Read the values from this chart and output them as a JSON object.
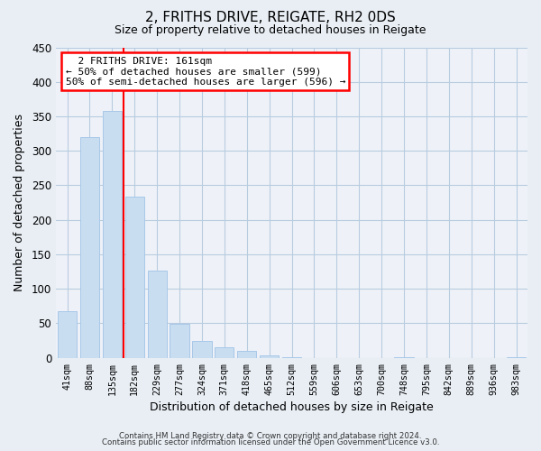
{
  "title": "2, FRITHS DRIVE, REIGATE, RH2 0DS",
  "subtitle": "Size of property relative to detached houses in Reigate",
  "xlabel": "Distribution of detached houses by size in Reigate",
  "ylabel": "Number of detached properties",
  "bar_color": "#c8ddf0",
  "bar_edge_color": "#a8c8e8",
  "categories": [
    "41sqm",
    "88sqm",
    "135sqm",
    "182sqm",
    "229sqm",
    "277sqm",
    "324sqm",
    "371sqm",
    "418sqm",
    "465sqm",
    "512sqm",
    "559sqm",
    "606sqm",
    "653sqm",
    "700sqm",
    "748sqm",
    "795sqm",
    "842sqm",
    "889sqm",
    "936sqm",
    "983sqm"
  ],
  "values": [
    67,
    320,
    358,
    234,
    127,
    49,
    25,
    15,
    10,
    3,
    1,
    0,
    0,
    0,
    0,
    1,
    0,
    0,
    0,
    0,
    1
  ],
  "ylim": [
    0,
    450
  ],
  "yticks": [
    0,
    50,
    100,
    150,
    200,
    250,
    300,
    350,
    400,
    450
  ],
  "red_line_x": 2.5,
  "annotation_title": "2 FRITHS DRIVE: 161sqm",
  "annotation_line1": "← 50% of detached houses are smaller (599)",
  "annotation_line2": "50% of semi-detached houses are larger (596) →",
  "footer_line1": "Contains HM Land Registry data © Crown copyright and database right 2024.",
  "footer_line2": "Contains public sector information licensed under the Open Government Licence v3.0.",
  "background_color": "#e8eef4",
  "plot_bg_color": "#eef2f8",
  "grid_color": "#b8cce0"
}
